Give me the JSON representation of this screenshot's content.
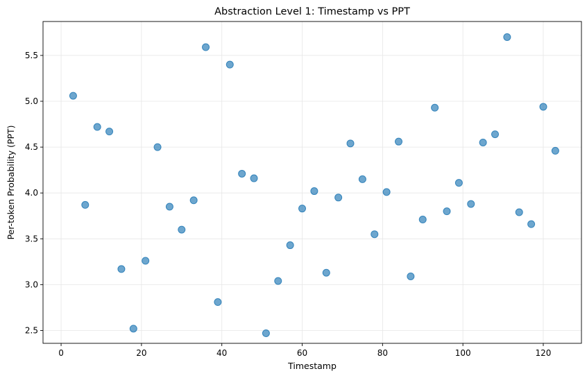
{
  "chart_data": {
    "type": "scatter",
    "title": "Abstraction Level 1: Timestamp vs PPT",
    "xlabel": "Timestamp",
    "ylabel": "Per-token Probability (PPT)",
    "xlim": [
      -4.5,
      129.5
    ],
    "ylim": [
      2.36,
      5.87
    ],
    "xticks": [
      0,
      20,
      40,
      60,
      80,
      100,
      120
    ],
    "xtick_labels": [
      "0",
      "20",
      "40",
      "60",
      "80",
      "100",
      "120"
    ],
    "yticks": [
      2.5,
      3.0,
      3.5,
      4.0,
      4.5,
      5.0,
      5.5
    ],
    "ytick_labels": [
      "2.5",
      "3.0",
      "3.5",
      "4.0",
      "4.5",
      "5.0",
      "5.5"
    ],
    "grid": true,
    "color": "#1f77b4",
    "series": [
      {
        "x": [
          3,
          6,
          9,
          12,
          15,
          18,
          21,
          24,
          27,
          30,
          33,
          36,
          39,
          42,
          45,
          48,
          51,
          54,
          57,
          60,
          63,
          66,
          69,
          72,
          75,
          78,
          81,
          84,
          87,
          90,
          93,
          96,
          99,
          102,
          105,
          108,
          111,
          114,
          117,
          120,
          123
        ],
        "y": [
          5.06,
          3.87,
          4.72,
          4.67,
          3.17,
          2.52,
          3.26,
          4.5,
          3.85,
          3.6,
          3.92,
          5.59,
          2.81,
          5.4,
          4.21,
          4.16,
          2.47,
          3.04,
          3.43,
          3.83,
          4.02,
          3.13,
          3.95,
          4.54,
          4.15,
          3.55,
          4.01,
          4.56,
          3.09,
          3.71,
          4.93,
          3.8,
          4.11,
          3.88,
          4.55,
          4.64,
          5.7,
          3.79,
          3.66,
          4.94,
          4.46
        ]
      }
    ]
  }
}
